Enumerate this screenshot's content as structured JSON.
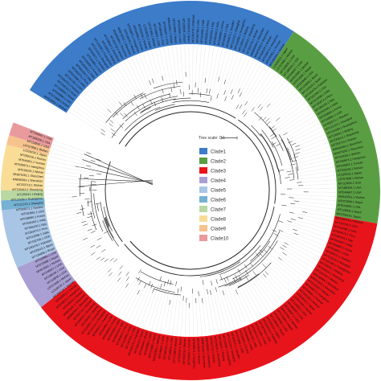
{
  "tree_scale": {
    "label": "Tree scale: 0.1"
  },
  "clades": [
    {
      "name": "Clade1",
      "color": "#3d7cc9",
      "start_deg": -58,
      "end_deg": 33
    },
    {
      "name": "Clade2",
      "color": "#5a9e43",
      "start_deg": 33,
      "end_deg": 100
    },
    {
      "name": "Clade3",
      "color": "#e8141b",
      "start_deg": 100,
      "end_deg": 232
    },
    {
      "name": "Clade4",
      "color": "#a99fd3",
      "start_deg": 232,
      "end_deg": 246
    },
    {
      "name": "Clade5",
      "color": "#a9c5e6",
      "start_deg": 246,
      "end_deg": 264
    },
    {
      "name": "Clade6",
      "color": "#75b2d4",
      "start_deg": 264,
      "end_deg": 267
    },
    {
      "name": "Clade7",
      "color": "#b9d8a2",
      "start_deg": 267,
      "end_deg": 270
    },
    {
      "name": "Clade8",
      "color": "#f9dc96",
      "start_deg": 270,
      "end_deg": 284
    },
    {
      "name": "Clade9",
      "color": "#f6c28e",
      "start_deg": 284,
      "end_deg": 287
    },
    {
      "name": "Clade10",
      "color": "#e89a9c",
      "start_deg": 287,
      "end_deg": 291
    }
  ],
  "leaf_labels": [
    "MH910591.1 Wuhan",
    "MT072688.1 Nepal",
    "MT020880.1 USA",
    "MT126808.1 Brazil",
    "MT233519.1 Spain",
    "MT240479.1 Pakistan",
    "MT192765.1 USA",
    "MT012098.1 India",
    "MT263074.1 Peru",
    "MT066156.1 Italy",
    "MT050493.1 India",
    "MT039890.1 Korea",
    "MT020881.1 USA",
    "MT093571.1 Sweden",
    "MT121215.1 Shanghai",
    "MT123290.1 Guangzhou",
    "MT135041.1 Beijing",
    "MT226610.1 Shandong",
    "MT253710.1 Wuhan",
    "MN938384.1 Shenzhen",
    "MN975262.1 Shenzhen",
    "MT019529.1 Wuhan",
    "MT039873.1 Hangzhou",
    "MT049951.1 Yunnan",
    "MT259226.1 Wuhan",
    "LC528232.1 Japan",
    "LR757998.1 Wuhan",
    "MT118835.1 USA",
    "MT188339.1 USA",
    "MT246667.1 USA"
  ]
}
